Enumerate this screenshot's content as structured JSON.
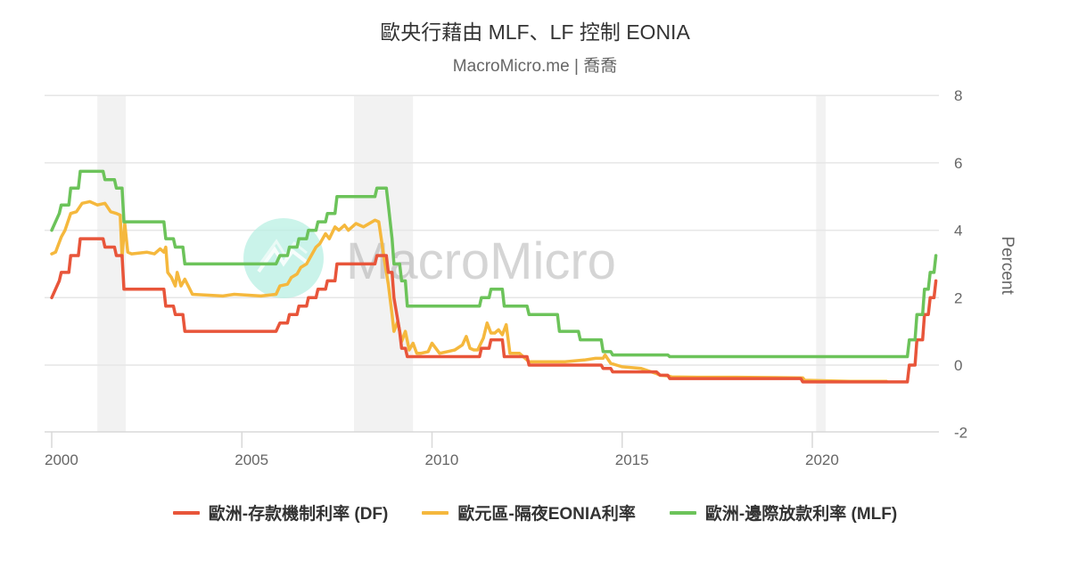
{
  "header": {
    "title": "歐央行藉由 MLF、LF 控制 EONIA",
    "subtitle": "MacroMicro.me | 喬喬"
  },
  "watermark": {
    "text": "MacroMicro",
    "logo_color": "#b9f0e3"
  },
  "colors": {
    "df": "#e8553a",
    "eonia": "#f5b83d",
    "mlf": "#6cc35a",
    "band": "#f2f2f2",
    "grid": "#e6e6e6"
  },
  "chart_data": {
    "type": "line",
    "title": "歐央行藉由 MLF、LF 控制 EONIA",
    "subtitle": "MacroMicro.me | 喬喬",
    "xlabel": "",
    "ylabel": "Percent",
    "ylim": [
      -2,
      8
    ],
    "yticks": [
      -2,
      0,
      2,
      4,
      6,
      8
    ],
    "xticks": [
      "2000",
      "2005",
      "2010",
      "2015",
      "2020"
    ],
    "xlim": [
      1999.95,
      2023.35
    ],
    "grid": true,
    "y_axis_position": "right",
    "legend_position": "bottom",
    "shaded_recession_bands": [
      [
        2001.2,
        2001.95
      ],
      [
        2007.95,
        2009.5
      ],
      [
        2020.1,
        2020.35
      ]
    ],
    "series": [
      {
        "name": "歐洲-存款機制利率 (DF)",
        "color": "#e8553a",
        "x": [
          2000.0,
          2000.2,
          2000.25,
          2000.45,
          2000.5,
          2000.7,
          2000.75,
          2001.35,
          2001.4,
          2001.65,
          2001.7,
          2001.85,
          2001.9,
          2002.95,
          2003.0,
          2003.2,
          2003.25,
          2003.45,
          2003.5,
          2005.9,
          2006.0,
          2006.2,
          2006.25,
          2006.45,
          2006.5,
          2006.7,
          2006.75,
          2006.95,
          2007.0,
          2007.2,
          2007.25,
          2007.45,
          2007.5,
          2008.5,
          2008.55,
          2008.8,
          2008.85,
          2008.95,
          2009.0,
          2009.15,
          2009.2,
          2009.3,
          2009.35,
          2011.25,
          2011.3,
          2011.5,
          2011.55,
          2011.85,
          2011.9,
          2012.5,
          2012.55,
          2014.45,
          2014.5,
          2014.7,
          2014.75,
          2015.9,
          2016.0,
          2016.2,
          2016.25,
          2019.7,
          2019.75,
          2022.5,
          2022.55,
          2022.7,
          2022.75,
          2022.9,
          2022.95,
          2023.05,
          2023.1,
          2023.2,
          2023.25
        ],
        "values": [
          2.0,
          2.5,
          2.75,
          2.75,
          3.25,
          3.25,
          3.75,
          3.75,
          3.5,
          3.5,
          3.25,
          3.25,
          2.25,
          2.25,
          1.75,
          1.75,
          1.5,
          1.5,
          1.0,
          1.0,
          1.25,
          1.25,
          1.5,
          1.5,
          1.75,
          1.75,
          2.0,
          2.0,
          2.25,
          2.25,
          2.5,
          2.5,
          3.0,
          3.0,
          3.25,
          3.25,
          2.75,
          2.75,
          2.0,
          1.0,
          0.5,
          0.5,
          0.25,
          0.25,
          0.5,
          0.5,
          0.75,
          0.75,
          0.25,
          0.25,
          0.0,
          0.0,
          -0.1,
          -0.1,
          -0.2,
          -0.2,
          -0.3,
          -0.3,
          -0.4,
          -0.4,
          -0.5,
          -0.5,
          0.0,
          0.0,
          0.75,
          0.75,
          1.5,
          1.5,
          2.0,
          2.0,
          2.5
        ]
      },
      {
        "name": "歐元區-隔夜EONIA利率",
        "color": "#f5b83d",
        "x": [
          2000.0,
          2000.1,
          2000.25,
          2000.35,
          2000.5,
          2000.65,
          2000.8,
          2001.0,
          2001.2,
          2001.4,
          2001.55,
          2001.7,
          2001.8,
          2001.85,
          2001.92,
          2002.0,
          2002.1,
          2002.5,
          2002.7,
          2002.85,
          2002.95,
          2003.0,
          2003.05,
          2003.15,
          2003.25,
          2003.3,
          2003.4,
          2003.5,
          2003.7,
          2004.5,
          2004.8,
          2005.5,
          2005.9,
          2006.0,
          2006.2,
          2006.3,
          2006.45,
          2006.55,
          2006.7,
          2006.8,
          2006.95,
          2007.05,
          2007.2,
          2007.3,
          2007.45,
          2007.55,
          2007.7,
          2007.8,
          2008.0,
          2008.2,
          2008.5,
          2008.6,
          2008.75,
          2008.85,
          2008.95,
          2009.0,
          2009.1,
          2009.2,
          2009.3,
          2009.4,
          2009.5,
          2009.6,
          2009.7,
          2009.9,
          2010.0,
          2010.2,
          2010.4,
          2010.6,
          2010.8,
          2010.9,
          2011.0,
          2011.1,
          2011.2,
          2011.35,
          2011.45,
          2011.55,
          2011.65,
          2011.75,
          2011.85,
          2011.95,
          2012.05,
          2012.3,
          2012.5,
          2012.55,
          2013.0,
          2013.5,
          2014.0,
          2014.3,
          2014.5,
          2014.55,
          2014.7,
          2014.85,
          2015.0,
          2015.5,
          2015.9,
          2016.0,
          2016.2,
          2016.3,
          2017.0,
          2018.0,
          2019.0,
          2019.75,
          2019.8,
          2020.5,
          2021.0,
          2021.95
        ],
        "values": [
          3.3,
          3.35,
          3.8,
          4.0,
          4.5,
          4.55,
          4.8,
          4.85,
          4.75,
          4.8,
          4.55,
          4.5,
          4.45,
          3.2,
          4.2,
          3.35,
          3.3,
          3.35,
          3.3,
          3.45,
          3.35,
          3.5,
          2.75,
          2.6,
          2.35,
          2.75,
          2.35,
          2.55,
          2.1,
          2.05,
          2.1,
          2.05,
          2.1,
          2.35,
          2.4,
          2.6,
          2.7,
          2.9,
          3.0,
          3.2,
          3.5,
          3.6,
          3.9,
          3.75,
          4.1,
          4.0,
          4.15,
          4.0,
          4.2,
          4.1,
          4.3,
          4.25,
          3.1,
          2.4,
          1.5,
          1.0,
          1.3,
          0.7,
          1.0,
          0.45,
          0.65,
          0.35,
          0.35,
          0.4,
          0.65,
          0.35,
          0.4,
          0.45,
          0.6,
          0.85,
          0.5,
          0.45,
          0.45,
          0.8,
          1.25,
          0.95,
          0.95,
          1.05,
          0.9,
          1.2,
          0.35,
          0.35,
          0.15,
          0.1,
          0.1,
          0.1,
          0.15,
          0.2,
          0.2,
          0.3,
          0.05,
          0.0,
          -0.05,
          -0.1,
          -0.25,
          -0.3,
          -0.32,
          -0.35,
          -0.36,
          -0.36,
          -0.37,
          -0.38,
          -0.45,
          -0.47,
          -0.48,
          -0.48
        ]
      },
      {
        "name": "歐洲-邊際放款利率 (MLF)",
        "color": "#6cc35a",
        "x": [
          2000.0,
          2000.2,
          2000.25,
          2000.45,
          2000.5,
          2000.7,
          2000.75,
          2001.35,
          2001.4,
          2001.65,
          2001.7,
          2001.85,
          2001.9,
          2002.95,
          2003.0,
          2003.2,
          2003.25,
          2003.45,
          2003.5,
          2005.9,
          2006.0,
          2006.2,
          2006.25,
          2006.45,
          2006.5,
          2006.7,
          2006.75,
          2006.95,
          2007.0,
          2007.2,
          2007.25,
          2007.45,
          2007.5,
          2008.5,
          2008.55,
          2008.8,
          2008.85,
          2008.95,
          2009.0,
          2009.15,
          2009.2,
          2009.3,
          2009.35,
          2011.25,
          2011.3,
          2011.5,
          2011.55,
          2011.85,
          2011.9,
          2012.5,
          2012.55,
          2013.3,
          2013.35,
          2013.85,
          2013.9,
          2014.45,
          2014.5,
          2014.7,
          2014.75,
          2015.9,
          2016.0,
          2016.2,
          2016.25,
          2022.5,
          2022.55,
          2022.7,
          2022.75,
          2022.9,
          2022.95,
          2023.05,
          2023.1,
          2023.2,
          2023.25
        ],
        "values": [
          4.0,
          4.5,
          4.75,
          4.75,
          5.25,
          5.25,
          5.75,
          5.75,
          5.5,
          5.5,
          5.25,
          5.25,
          4.25,
          4.25,
          3.75,
          3.75,
          3.5,
          3.5,
          3.0,
          3.0,
          3.25,
          3.25,
          3.5,
          3.5,
          3.75,
          3.75,
          4.0,
          4.0,
          4.25,
          4.25,
          4.5,
          4.5,
          5.0,
          5.0,
          5.25,
          5.25,
          4.75,
          3.75,
          3.0,
          3.0,
          2.5,
          2.5,
          1.75,
          1.75,
          2.0,
          2.0,
          2.25,
          2.25,
          1.75,
          1.75,
          1.5,
          1.5,
          1.0,
          1.0,
          0.75,
          0.75,
          0.4,
          0.4,
          0.3,
          0.3,
          0.3,
          0.3,
          0.25,
          0.25,
          0.75,
          0.75,
          1.5,
          1.5,
          2.25,
          2.25,
          2.75,
          2.75,
          3.25
        ]
      }
    ]
  },
  "axes": {
    "y_ticks": [
      "8",
      "6",
      "4",
      "2",
      "0",
      "-2"
    ],
    "x_ticks": [
      "2000",
      "2005",
      "2010",
      "2015",
      "2020"
    ],
    "y_title": "Percent"
  },
  "legend": {
    "items": [
      {
        "label": "歐洲-存款機制利率 (DF)",
        "color": "#e8553a"
      },
      {
        "label": "歐元區-隔夜EONIA利率",
        "color": "#f5b83d"
      },
      {
        "label": "歐洲-邊際放款利率 (MLF)",
        "color": "#6cc35a"
      }
    ]
  }
}
